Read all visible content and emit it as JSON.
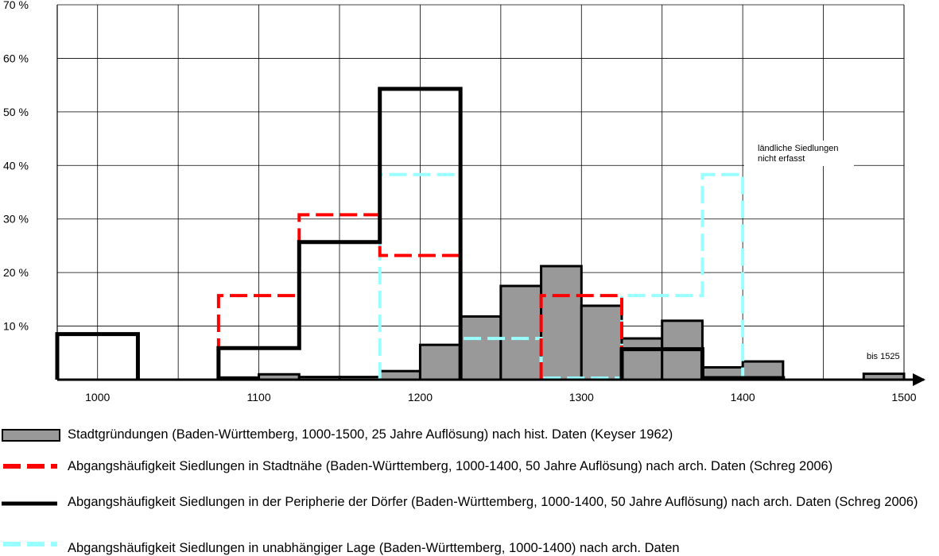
{
  "chart_data": {
    "type": "bar",
    "x_ticks": [
      "1000",
      "1100",
      "1200",
      "1300",
      "1400",
      "1500"
    ],
    "y_ticks": [
      "10 %",
      "20 %",
      "30 %",
      "40 %",
      "50 %",
      "60 %",
      "70 %"
    ],
    "xlim": [
      975,
      1500
    ],
    "ylim": [
      0,
      70
    ],
    "grid": true,
    "legend_position": "bottom",
    "annotations": {
      "rural_note_line1": "ländliche Siedlungen",
      "rural_note_line2": "nicht erfasst",
      "bis_1525": "bis 1525"
    },
    "series": [
      {
        "name": "Stadtgründungen (Baden-Württemberg, 1000-1500, 25 Jahre Auflösung) nach hist. Daten (Keyser 1962)",
        "style": "gray-filled-bars",
        "color": "#999999",
        "bins": [
          {
            "x0": 1075,
            "x1": 1100,
            "y": 0.4
          },
          {
            "x0": 1100,
            "x1": 1125,
            "y": 1.0
          },
          {
            "x0": 1125,
            "x1": 1150,
            "y": 0.5
          },
          {
            "x0": 1150,
            "x1": 1175,
            "y": 0.5
          },
          {
            "x0": 1175,
            "x1": 1200,
            "y": 1.6
          },
          {
            "x0": 1200,
            "x1": 1225,
            "y": 6.5
          },
          {
            "x0": 1225,
            "x1": 1250,
            "y": 11.8
          },
          {
            "x0": 1250,
            "x1": 1275,
            "y": 17.5
          },
          {
            "x0": 1275,
            "x1": 1300,
            "y": 21.2
          },
          {
            "x0": 1300,
            "x1": 1325,
            "y": 13.8
          },
          {
            "x0": 1325,
            "x1": 1350,
            "y": 7.7
          },
          {
            "x0": 1350,
            "x1": 1375,
            "y": 11.0
          },
          {
            "x0": 1375,
            "x1": 1400,
            "y": 2.3
          },
          {
            "x0": 1400,
            "x1": 1425,
            "y": 3.4
          },
          {
            "x0": 1475,
            "x1": 1500,
            "y": 1.1
          }
        ]
      },
      {
        "name": "Abgangshäufigkeit Siedlungen in Stadtnähe (Baden-Württemberg, 1000-1400, 50 Jahre Auflösung) nach arch. Daten (Schreg 2006)",
        "style": "red-dashed-step",
        "color": "#ff0000",
        "bins": [
          {
            "x0": 1075,
            "x1": 1125,
            "y": 15.7
          },
          {
            "x0": 1125,
            "x1": 1175,
            "y": 30.8
          },
          {
            "x0": 1175,
            "x1": 1225,
            "y": 23.2
          },
          {
            "x0": 1275,
            "x1": 1325,
            "y": 15.7
          }
        ]
      },
      {
        "name": "Abgangshäufigkeit Siedlungen in der Peripherie der Dörfer (Baden-Württemberg, 1000-1400, 50 Jahre Auflösung) nach arch. Daten (Schreg 2006)",
        "style": "black-solid-step",
        "color": "#000000",
        "bins": [
          {
            "x0": 975,
            "x1": 1025,
            "y": 8.5
          },
          {
            "x0": 1075,
            "x1": 1125,
            "y": 5.9
          },
          {
            "x0": 1125,
            "x1": 1175,
            "y": 25.7
          },
          {
            "x0": 1175,
            "x1": 1225,
            "y": 54.3
          },
          {
            "x0": 1325,
            "x1": 1375,
            "y": 5.7
          },
          {
            "x0": 1375,
            "x1": 1425,
            "y": 0.3
          }
        ]
      },
      {
        "name": "Abgangshäufigkeit Siedlungen in unabhängiger Lage (Baden-Württemberg, 1000-1400) nach arch. Daten",
        "style": "cyan-dashed-step",
        "color": "#99ffff",
        "bins": [
          {
            "x0": 1175,
            "x1": 1225,
            "y": 38.3
          },
          {
            "x0": 1225,
            "x1": 1275,
            "y": 7.7
          },
          {
            "x0": 1275,
            "x1": 1325,
            "y": 0.3
          },
          {
            "x0": 1325,
            "x1": 1375,
            "y": 15.7
          },
          {
            "x0": 1375,
            "x1": 1400,
            "y": 38.3
          }
        ]
      }
    ]
  }
}
